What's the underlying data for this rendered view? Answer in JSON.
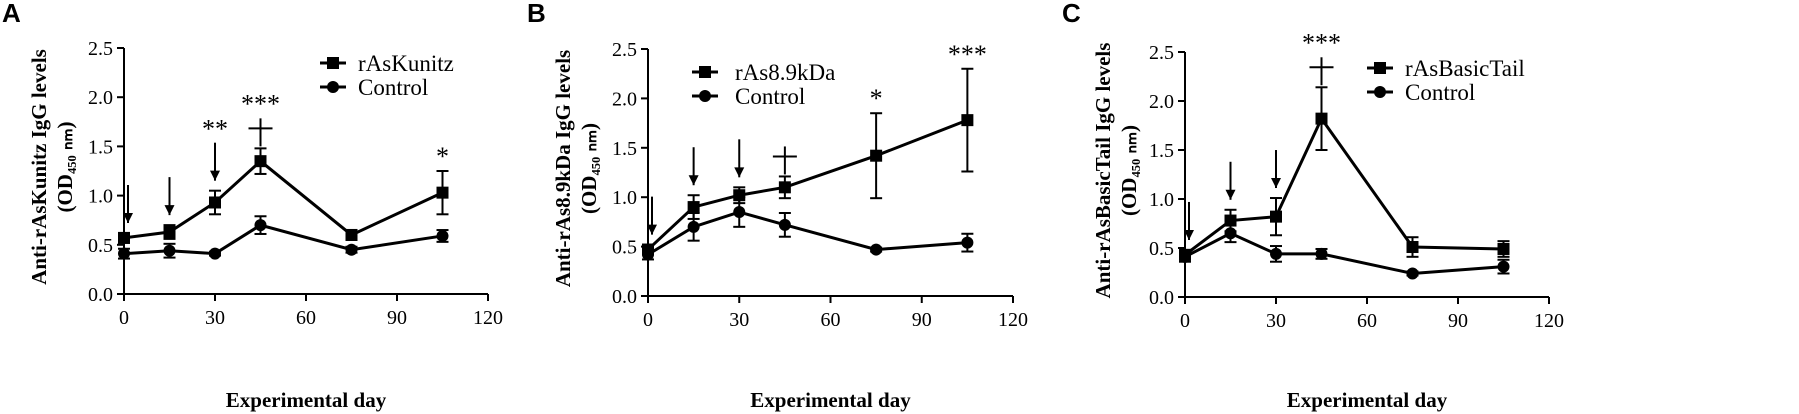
{
  "chart_data": [
    {
      "type": "line",
      "panel_label": "A",
      "xlabel": "Experimental day",
      "ylabel": "Anti-rAsKunitz IgG levels",
      "ylabel_sub": "(OD₄₅₀ ₙₘ)",
      "xlim": [
        0,
        120
      ],
      "ylim": [
        0,
        2.5
      ],
      "xticks": [
        "0",
        "30",
        "60",
        "90",
        "120"
      ],
      "yticks": [
        "0.0",
        "0.5",
        "1.0",
        "1.5",
        "2.0",
        "2.5"
      ],
      "legend_position": "top-right",
      "series": [
        {
          "name": "rAsKunitz",
          "marker": "square",
          "x": [
            0,
            15,
            30,
            45,
            75,
            105
          ],
          "y": [
            0.57,
            0.63,
            0.93,
            1.35,
            0.6,
            1.03
          ],
          "err": [
            0.05,
            0.07,
            0.12,
            0.13,
            0.05,
            0.22
          ]
        },
        {
          "name": "Control",
          "marker": "circle",
          "x": [
            0,
            15,
            30,
            45,
            75,
            105
          ],
          "y": [
            0.41,
            0.44,
            0.41,
            0.7,
            0.45,
            0.59
          ],
          "err": [
            0.05,
            0.07,
            0.02,
            0.09,
            0.03,
            0.06
          ]
        }
      ],
      "immunization_arrows": [
        0,
        15,
        30
      ],
      "annotations": [
        {
          "text": "**",
          "x": 30
        },
        {
          "text": "***",
          "x": 45
        },
        {
          "text": "+",
          "x": 45
        },
        {
          "text": "*",
          "x": 105
        }
      ]
    },
    {
      "type": "line",
      "panel_label": "B",
      "xlabel": "Experimental day",
      "ylabel": "Anti-rAs8.9kDa IgG levels",
      "ylabel_sub": "(OD₄₅₀ ₙₘ)",
      "xlim": [
        0,
        120
      ],
      "ylim": [
        0,
        2.5
      ],
      "xticks": [
        "0",
        "30",
        "60",
        "90",
        "120"
      ],
      "yticks": [
        "0.0",
        "0.5",
        "1.0",
        "1.5",
        "2.0",
        "2.5"
      ],
      "legend_position": "top-left",
      "series": [
        {
          "name": "rAs8.9kDa",
          "marker": "square",
          "x": [
            0,
            15,
            30,
            45,
            75,
            105
          ],
          "y": [
            0.47,
            0.9,
            1.02,
            1.1,
            1.42,
            1.78
          ],
          "err": [
            0.05,
            0.12,
            0.08,
            0.11,
            0.43,
            0.52
          ]
        },
        {
          "name": "Control",
          "marker": "circle",
          "x": [
            0,
            15,
            30,
            45,
            75,
            105
          ],
          "y": [
            0.42,
            0.7,
            0.85,
            0.72,
            0.47,
            0.54
          ],
          "err": [
            0.05,
            0.14,
            0.15,
            0.12,
            0.02,
            0.09
          ]
        }
      ],
      "immunization_arrows": [
        0,
        15,
        30
      ],
      "annotations": [
        {
          "text": "+",
          "x": 45
        },
        {
          "text": "*",
          "x": 75
        },
        {
          "text": "***",
          "x": 105
        }
      ]
    },
    {
      "type": "line",
      "panel_label": "C",
      "xlabel": "Experimental day",
      "ylabel": "Anti-rAsBasicTail IgG levels",
      "ylabel_sub": "(OD₄₅₀ ₙₘ)",
      "xlim": [
        0,
        120
      ],
      "ylim": [
        0,
        2.5
      ],
      "xticks": [
        "0",
        "30",
        "60",
        "90",
        "120"
      ],
      "yticks": [
        "0.0",
        "0.5",
        "1.0",
        "1.5",
        "2.0",
        "2.5"
      ],
      "legend_position": "top-right",
      "series": [
        {
          "name": "rAsBasicTail",
          "marker": "square",
          "x": [
            0,
            15,
            30,
            45,
            75,
            105
          ],
          "y": [
            0.43,
            0.78,
            0.82,
            1.82,
            0.51,
            0.49
          ],
          "err": [
            0.05,
            0.11,
            0.19,
            0.32,
            0.1,
            0.08
          ]
        },
        {
          "name": "Control",
          "marker": "circle",
          "x": [
            0,
            15,
            30,
            45,
            75,
            105
          ],
          "y": [
            0.41,
            0.65,
            0.44,
            0.44,
            0.24,
            0.31
          ],
          "err": [
            0.05,
            0.09,
            0.08,
            0.05,
            0.02,
            0.07
          ]
        }
      ],
      "immunization_arrows": [
        0,
        15,
        30
      ],
      "annotations": [
        {
          "text": "***",
          "x": 45
        },
        {
          "text": "+",
          "x": 45
        }
      ]
    }
  ]
}
